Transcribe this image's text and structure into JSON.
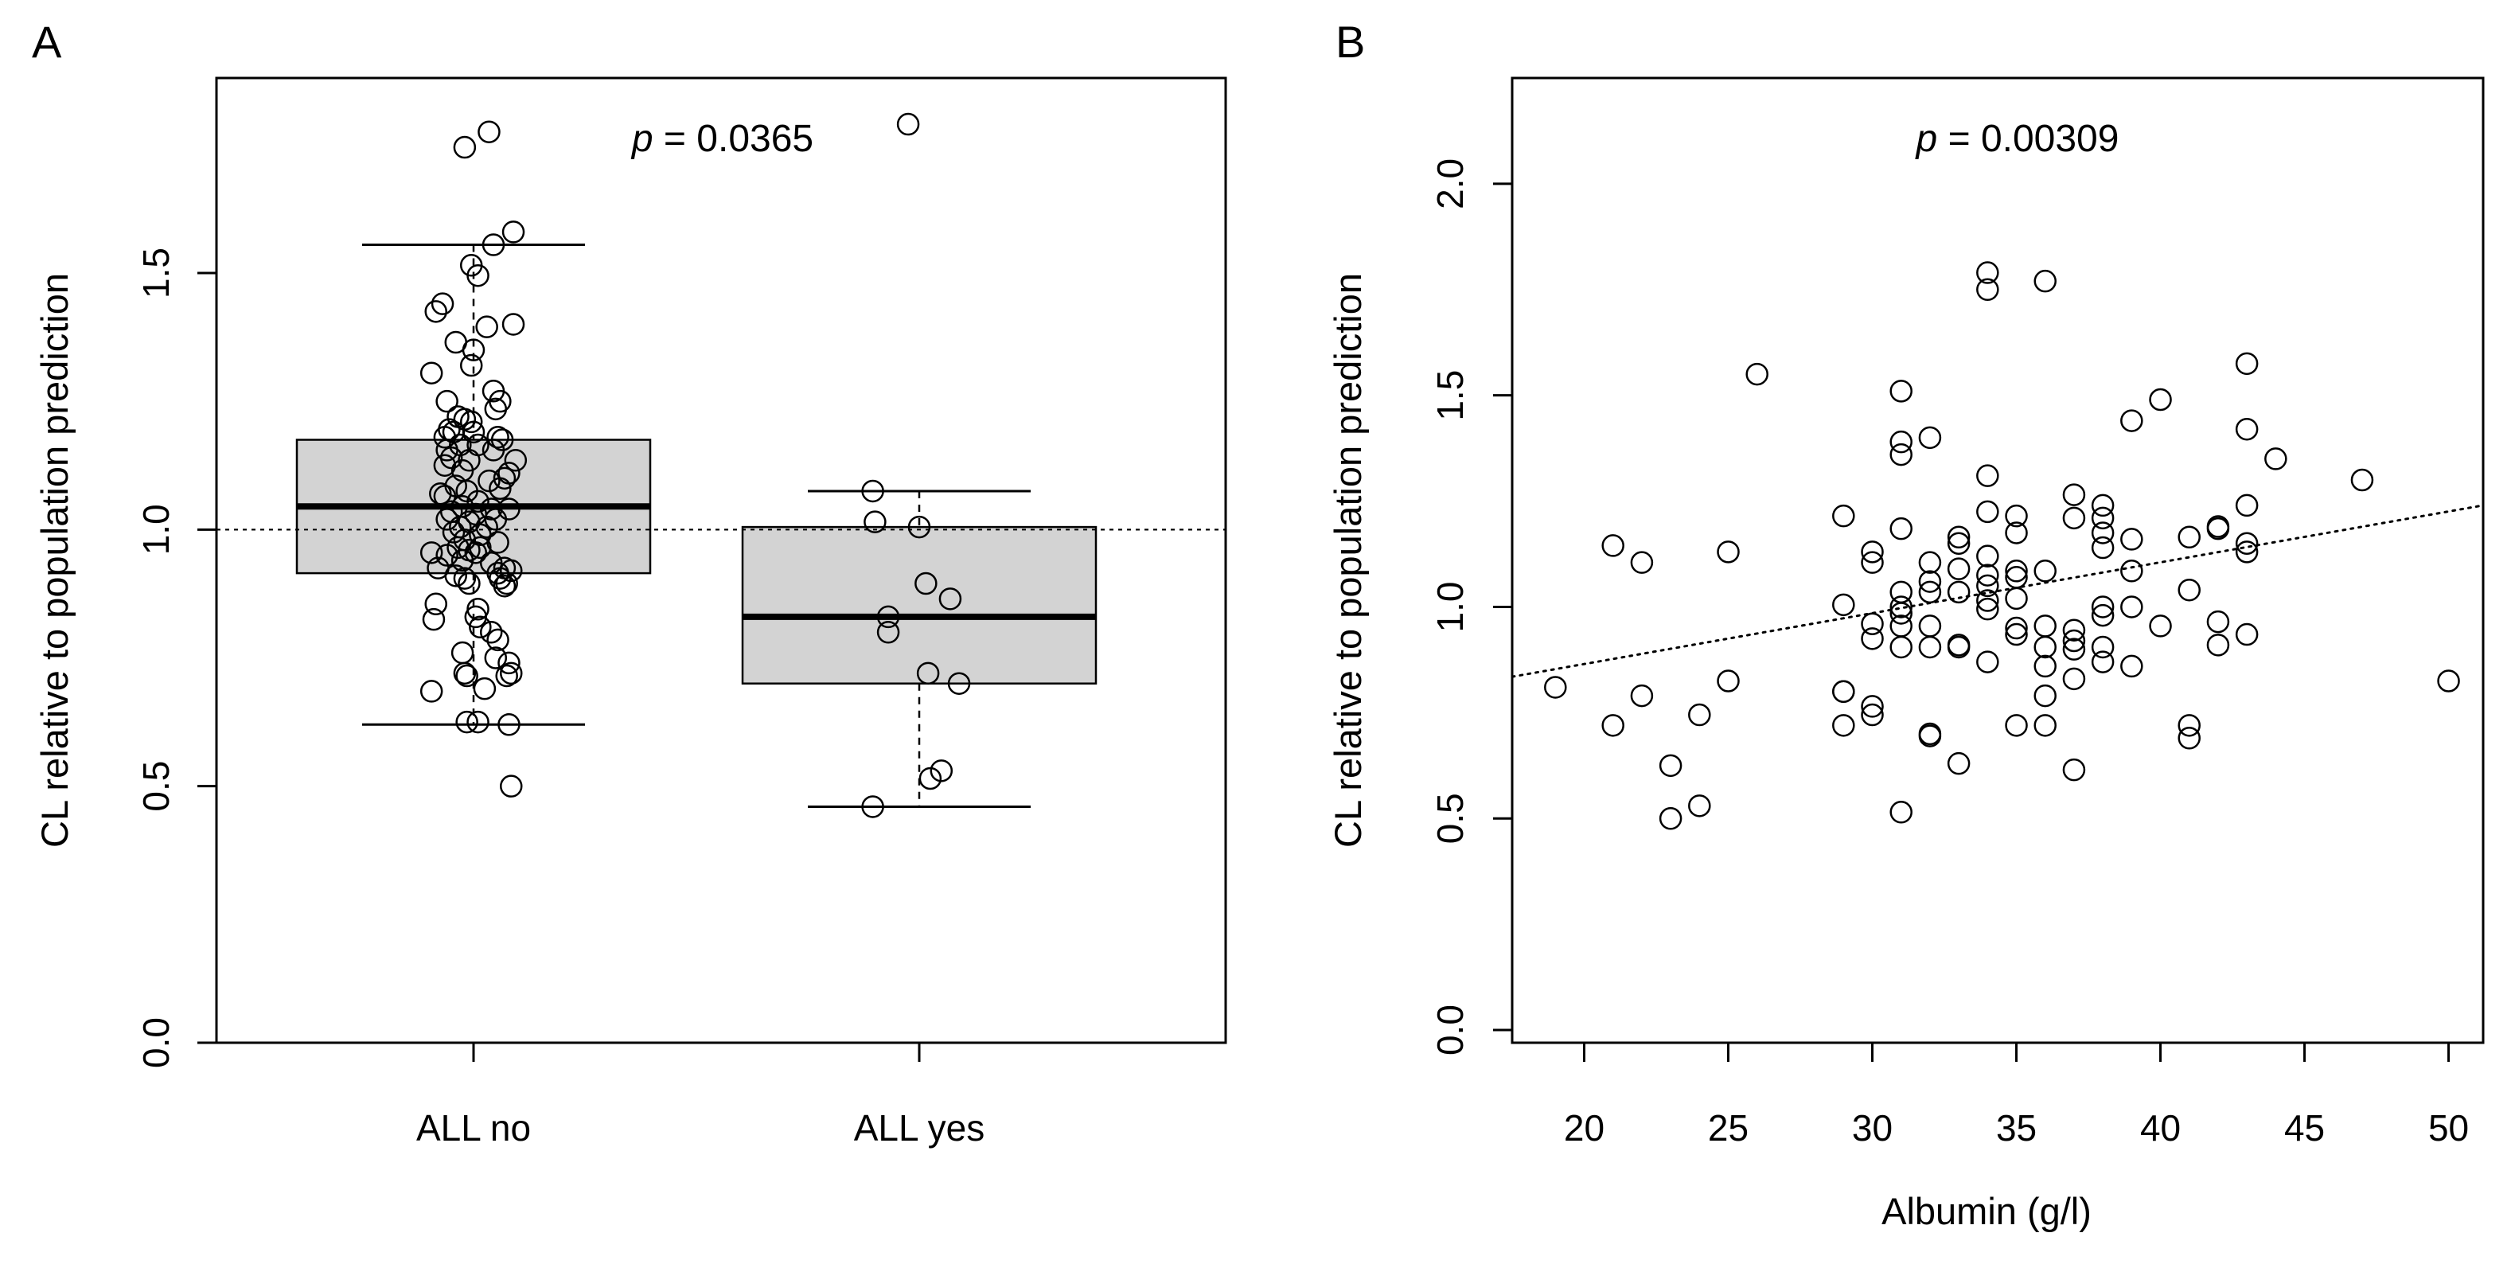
{
  "chart_data": [
    {
      "type": "boxplot",
      "panel_label": "A",
      "ylabel": "CL relative to population prediction",
      "xlabel": "",
      "ylim": [
        0,
        1.88
      ],
      "y_ticks": [
        0.0,
        0.5,
        1.0,
        1.5
      ],
      "y_tick_labels": [
        "0.0",
        "0.5",
        "1.0",
        "1.5"
      ],
      "categories": [
        "ALL no",
        "ALL yes"
      ],
      "reference_line_y": 1.0,
      "annotation": {
        "prefix": "p",
        "text": " = 0.0365"
      },
      "boxes": [
        {
          "name": "ALL no",
          "whisker_low": 0.62,
          "q1": 0.915,
          "median": 1.045,
          "q3": 1.175,
          "whisker_high": 1.555
        },
        {
          "name": "ALL yes",
          "whisker_low": 0.46,
          "q1": 0.7,
          "median": 0.83,
          "q3": 1.005,
          "whisker_high": 1.075
        }
      ],
      "points": [
        {
          "g": 0,
          "dx": -0.04,
          "y": 1.745
        },
        {
          "g": 0,
          "dx": 0.07,
          "y": 1.775
        },
        {
          "g": 0,
          "dx": 0.18,
          "y": 1.58
        },
        {
          "g": 0,
          "dx": 0.09,
          "y": 1.555
        },
        {
          "g": 0,
          "dx": -0.01,
          "y": 1.515
        },
        {
          "g": 0,
          "dx": 0.02,
          "y": 1.495
        },
        {
          "g": 0,
          "dx": -0.14,
          "y": 1.44
        },
        {
          "g": 0,
          "dx": -0.17,
          "y": 1.425
        },
        {
          "g": 0,
          "dx": 0.18,
          "y": 1.4
        },
        {
          "g": 0,
          "dx": 0.06,
          "y": 1.395
        },
        {
          "g": 0,
          "dx": -0.08,
          "y": 1.365
        },
        {
          "g": 0,
          "dx": 0.0,
          "y": 1.35
        },
        {
          "g": 0,
          "dx": -0.01,
          "y": 1.32
        },
        {
          "g": 0,
          "dx": -0.19,
          "y": 1.305
        },
        {
          "g": 0,
          "dx": 0.09,
          "y": 1.27
        },
        {
          "g": 0,
          "dx": -0.12,
          "y": 1.25
        },
        {
          "g": 0,
          "dx": 0.12,
          "y": 1.25
        },
        {
          "g": 0,
          "dx": 0.1,
          "y": 1.235
        },
        {
          "g": 0,
          "dx": -0.07,
          "y": 1.22
        },
        {
          "g": 0,
          "dx": -0.04,
          "y": 1.215
        },
        {
          "g": 0,
          "dx": -0.01,
          "y": 1.21
        },
        {
          "g": 0,
          "dx": -0.11,
          "y": 1.195
        },
        {
          "g": 0,
          "dx": -0.09,
          "y": 1.19
        },
        {
          "g": 0,
          "dx": 0.0,
          "y": 1.19
        },
        {
          "g": 0,
          "dx": -0.13,
          "y": 1.18
        },
        {
          "g": 0,
          "dx": 0.11,
          "y": 1.18
        },
        {
          "g": 0,
          "dx": 0.13,
          "y": 1.175
        },
        {
          "g": 0,
          "dx": -0.06,
          "y": 1.165
        },
        {
          "g": 0,
          "dx": 0.02,
          "y": 1.165
        },
        {
          "g": 0,
          "dx": -0.12,
          "y": 1.155
        },
        {
          "g": 0,
          "dx": 0.09,
          "y": 1.155
        },
        {
          "g": 0,
          "dx": -0.1,
          "y": 1.14
        },
        {
          "g": 0,
          "dx": -0.02,
          "y": 1.135
        },
        {
          "g": 0,
          "dx": 0.19,
          "y": 1.135
        },
        {
          "g": 0,
          "dx": -0.13,
          "y": 1.125
        },
        {
          "g": 0,
          "dx": -0.05,
          "y": 1.115
        },
        {
          "g": 0,
          "dx": 0.16,
          "y": 1.11
        },
        {
          "g": 0,
          "dx": 0.14,
          "y": 1.1
        },
        {
          "g": 0,
          "dx": 0.07,
          "y": 1.095
        },
        {
          "g": 0,
          "dx": -0.08,
          "y": 1.085
        },
        {
          "g": 0,
          "dx": 0.12,
          "y": 1.08
        },
        {
          "g": 0,
          "dx": -0.03,
          "y": 1.075
        },
        {
          "g": 0,
          "dx": -0.15,
          "y": 1.07
        },
        {
          "g": 0,
          "dx": -0.13,
          "y": 1.065
        },
        {
          "g": 0,
          "dx": 0.02,
          "y": 1.055
        },
        {
          "g": 0,
          "dx": -0.05,
          "y": 1.045
        },
        {
          "g": 0,
          "dx": 0.08,
          "y": 1.04
        },
        {
          "g": 0,
          "dx": 0.16,
          "y": 1.04
        },
        {
          "g": 0,
          "dx": -0.1,
          "y": 1.035
        },
        {
          "g": 0,
          "dx": 0.01,
          "y": 1.03
        },
        {
          "g": 0,
          "dx": -0.12,
          "y": 1.02
        },
        {
          "g": 0,
          "dx": 0.1,
          "y": 1.02
        },
        {
          "g": 0,
          "dx": -0.02,
          "y": 1.015
        },
        {
          "g": 0,
          "dx": -0.06,
          "y": 1.005
        },
        {
          "g": 0,
          "dx": 0.06,
          "y": 1.005
        },
        {
          "g": 0,
          "dx": -0.09,
          "y": 0.995
        },
        {
          "g": 0,
          "dx": 0.03,
          "y": 0.99
        },
        {
          "g": 0,
          "dx": -0.04,
          "y": 0.98
        },
        {
          "g": 0,
          "dx": 0.11,
          "y": 0.975
        },
        {
          "g": 0,
          "dx": -0.07,
          "y": 0.965
        },
        {
          "g": 0,
          "dx": 0.03,
          "y": 0.965
        },
        {
          "g": 0,
          "dx": -0.02,
          "y": 0.96
        },
        {
          "g": 0,
          "dx": -0.19,
          "y": 0.955
        },
        {
          "g": 0,
          "dx": -0.12,
          "y": 0.95
        },
        {
          "g": 0,
          "dx": 0.01,
          "y": 0.955
        },
        {
          "g": 0,
          "dx": -0.05,
          "y": 0.94
        },
        {
          "g": 0,
          "dx": 0.08,
          "y": 0.935
        },
        {
          "g": 0,
          "dx": -0.16,
          "y": 0.925
        },
        {
          "g": 0,
          "dx": 0.14,
          "y": 0.925
        },
        {
          "g": 0,
          "dx": 0.17,
          "y": 0.92
        },
        {
          "g": 0,
          "dx": 0.11,
          "y": 0.915
        },
        {
          "g": 0,
          "dx": -0.08,
          "y": 0.91
        },
        {
          "g": 0,
          "dx": -0.04,
          "y": 0.905
        },
        {
          "g": 0,
          "dx": 0.12,
          "y": 0.905
        },
        {
          "g": 0,
          "dx": 0.15,
          "y": 0.895
        },
        {
          "g": 0,
          "dx": -0.02,
          "y": 0.895
        },
        {
          "g": 0,
          "dx": 0.14,
          "y": 0.89
        },
        {
          "g": 0,
          "dx": -0.17,
          "y": 0.855
        },
        {
          "g": 0,
          "dx": 0.02,
          "y": 0.845
        },
        {
          "g": 0,
          "dx": 0.01,
          "y": 0.83
        },
        {
          "g": 0,
          "dx": -0.18,
          "y": 0.825
        },
        {
          "g": 0,
          "dx": 0.03,
          "y": 0.81
        },
        {
          "g": 0,
          "dx": 0.08,
          "y": 0.8
        },
        {
          "g": 0,
          "dx": 0.11,
          "y": 0.785
        },
        {
          "g": 0,
          "dx": -0.05,
          "y": 0.76
        },
        {
          "g": 0,
          "dx": 0.1,
          "y": 0.75
        },
        {
          "g": 0,
          "dx": 0.16,
          "y": 0.74
        },
        {
          "g": 0,
          "dx": -0.04,
          "y": 0.72
        },
        {
          "g": 0,
          "dx": -0.03,
          "y": 0.715
        },
        {
          "g": 0,
          "dx": 0.17,
          "y": 0.72
        },
        {
          "g": 0,
          "dx": 0.15,
          "y": 0.715
        },
        {
          "g": 0,
          "dx": 0.05,
          "y": 0.69
        },
        {
          "g": 0,
          "dx": -0.19,
          "y": 0.685
        },
        {
          "g": 0,
          "dx": -0.03,
          "y": 0.625
        },
        {
          "g": 0,
          "dx": 0.02,
          "y": 0.625
        },
        {
          "g": 0,
          "dx": 0.16,
          "y": 0.62
        },
        {
          "g": 0,
          "dx": 0.17,
          "y": 0.5
        },
        {
          "g": 1,
          "dx": -0.05,
          "y": 1.79
        },
        {
          "g": 1,
          "dx": -0.21,
          "y": 1.075
        },
        {
          "g": 1,
          "dx": -0.2,
          "y": 1.015
        },
        {
          "g": 1,
          "dx": 0.0,
          "y": 1.005
        },
        {
          "g": 1,
          "dx": 0.03,
          "y": 0.895
        },
        {
          "g": 1,
          "dx": 0.14,
          "y": 0.865
        },
        {
          "g": 1,
          "dx": -0.14,
          "y": 0.83
        },
        {
          "g": 1,
          "dx": -0.14,
          "y": 0.8
        },
        {
          "g": 1,
          "dx": 0.04,
          "y": 0.72
        },
        {
          "g": 1,
          "dx": 0.18,
          "y": 0.7
        },
        {
          "g": 1,
          "dx": 0.1,
          "y": 0.53
        },
        {
          "g": 1,
          "dx": 0.05,
          "y": 0.515
        },
        {
          "g": 1,
          "dx": -0.21,
          "y": 0.46
        }
      ]
    },
    {
      "type": "scatter",
      "panel_label": "B",
      "xlabel": "Albumin (g/l)",
      "ylabel": "CL relative to population prediction",
      "xlim": [
        17.5,
        51.2
      ],
      "ylim": [
        -0.03,
        2.25
      ],
      "x_ticks": [
        20,
        25,
        30,
        35,
        40,
        45,
        50
      ],
      "x_tick_labels": [
        "20",
        "25",
        "30",
        "35",
        "40",
        "45",
        "50"
      ],
      "y_ticks": [
        0.0,
        0.5,
        1.0,
        1.5,
        2.0
      ],
      "y_tick_labels": [
        "0.0",
        "0.5",
        "1.0",
        "1.5",
        "2.0"
      ],
      "annotation": {
        "prefix": "p",
        "text": " = 0.00309"
      },
      "trend_line": {
        "x": [
          17.5,
          51.2
        ],
        "y": [
          0.835,
          1.24
        ]
      },
      "x": [
        19,
        21,
        21,
        22,
        22,
        23,
        23,
        24,
        24,
        25,
        25,
        26,
        29,
        29,
        29,
        29,
        29,
        30,
        30,
        30,
        30,
        30,
        30,
        31,
        31,
        31,
        31,
        31,
        31,
        31,
        31,
        31,
        31,
        32,
        32,
        32,
        32,
        32,
        32,
        32,
        32,
        33,
        33,
        33,
        33,
        33,
        33,
        33,
        34,
        34,
        34,
        34,
        34,
        34,
        34,
        34,
        34,
        34,
        35,
        35,
        35,
        35,
        35,
        35,
        35,
        35,
        36,
        36,
        36,
        36,
        36,
        36,
        36,
        37,
        37,
        37,
        37,
        37,
        37,
        37,
        38,
        38,
        38,
        38,
        38,
        38,
        38,
        38,
        39,
        39,
        39,
        39,
        39,
        40,
        40,
        41,
        41,
        41,
        41,
        42,
        42,
        42,
        42,
        43,
        43,
        43,
        43,
        43,
        43,
        44,
        47,
        50
      ],
      "y": [
        0.81,
        1.145,
        0.72,
        1.105,
        0.79,
        0.625,
        0.5,
        0.745,
        0.53,
        1.13,
        0.825,
        1.55,
        1.215,
        1.005,
        0.8,
        0.8,
        0.72,
        1.13,
        1.105,
        0.96,
        0.925,
        0.765,
        0.745,
        1.51,
        1.39,
        1.36,
        1.185,
        1.035,
        1.0,
        0.985,
        0.955,
        0.905,
        0.515,
        1.4,
        1.105,
        1.06,
        1.035,
        0.955,
        0.905,
        0.7,
        0.695,
        1.165,
        1.15,
        1.09,
        1.035,
        0.91,
        0.905,
        0.63,
        1.79,
        1.75,
        1.31,
        1.225,
        1.12,
        1.075,
        1.05,
        1.015,
        0.995,
        0.87,
        1.215,
        1.175,
        1.085,
        1.07,
        1.02,
        0.95,
        0.935,
        0.72,
        1.77,
        1.085,
        0.955,
        0.905,
        0.86,
        0.79,
        0.72,
        1.265,
        1.21,
        0.945,
        0.92,
        0.9,
        0.83,
        0.615,
        1.24,
        1.21,
        1.175,
        1.14,
        1.0,
        0.98,
        0.905,
        0.87,
        1.44,
        1.16,
        1.085,
        1.0,
        0.86,
        1.49,
        0.955,
        1.165,
        1.04,
        0.72,
        0.69,
        1.19,
        1.185,
        0.965,
        0.91,
        1.575,
        1.42,
        1.24,
        1.15,
        1.13,
        0.935,
        1.35,
        1.3,
        0.825
      ]
    }
  ]
}
